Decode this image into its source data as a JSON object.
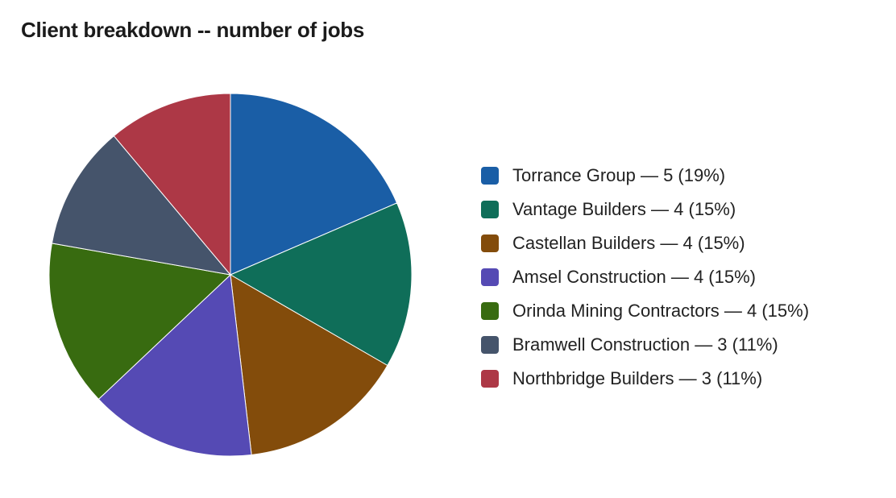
{
  "chart_data": {
    "type": "pie",
    "title": "Client breakdown -- number of jobs",
    "categories": [
      "Torrance Group",
      "Vantage Builders",
      "Castellan Builders",
      "Amsel Construction",
      "Orinda Mining Contractors",
      "Bramwell Construction",
      "Northbridge Builders"
    ],
    "values": [
      5,
      4,
      4,
      4,
      4,
      3,
      3
    ],
    "colors": [
      "#1a5ea6",
      "#0f6e59",
      "#834c0b",
      "#554ab4",
      "#386b10",
      "#45546b",
      "#ad3846"
    ],
    "legend_labels": [
      "Torrance Group — 5 (19%)",
      "Vantage Builders — 4 (15%)",
      "Castellan Builders — 4 (15%)",
      "Amsel Construction — 4 (15%)",
      "Orinda Mining Contractors — 4 (15%)",
      "Bramwell Construction — 3 (11%)",
      "Northbridge Builders — 3 (11%)"
    ],
    "legend_position": "right",
    "start_angle": "top",
    "direction": "clockwise"
  }
}
